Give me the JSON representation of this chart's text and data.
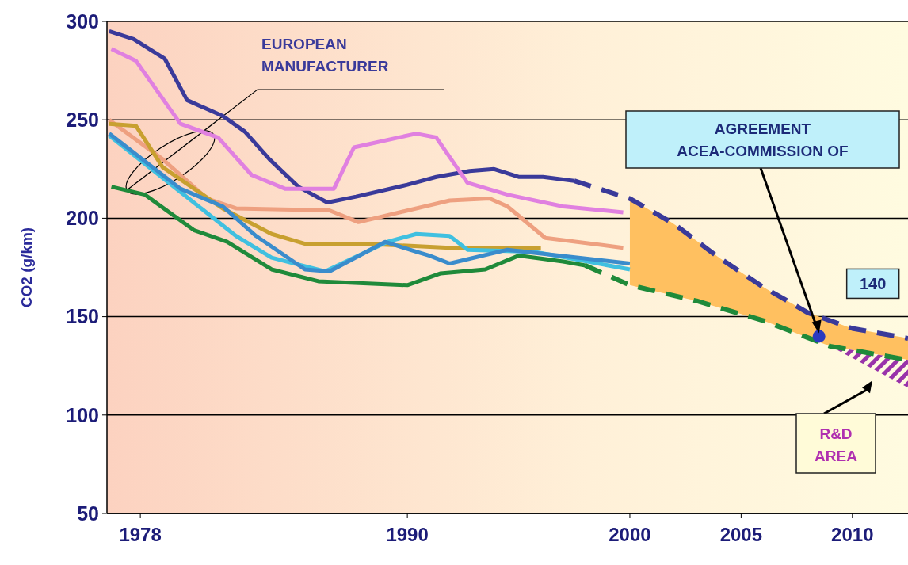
{
  "chart_data": {
    "type": "line",
    "ylabel": "CO2 (g/km)",
    "xlim": [
      1976.5,
      2012.5
    ],
    "xticks": [
      1978,
      1990,
      2000,
      2005,
      2010
    ],
    "ylim": [
      50,
      300
    ],
    "yticks": [
      50,
      100,
      150,
      200,
      250,
      300
    ],
    "grid": "y",
    "series": [
      {
        "color": "#3a3a9a",
        "x": [
          1976.6,
          1977.7,
          1979.1,
          1980.1,
          1981.7,
          1982.7,
          1983.8,
          1985.1,
          1986.4,
          1987.7,
          1990,
          1991.3,
          1992.8,
          1993.9,
          1995,
          1996.1,
          1997.5
        ],
        "values": [
          295,
          291,
          281,
          260,
          252,
          244,
          230,
          216,
          208,
          211,
          217,
          221,
          224,
          225,
          221,
          221,
          219
        ]
      },
      {
        "color": "#e080e0",
        "x": [
          1976.7,
          1977.8,
          1979.8,
          1981.5,
          1983,
          1984.5,
          1986.7,
          1987.6,
          1990.4,
          1991.3,
          1992.7,
          1994.5,
          1997,
          1999.7
        ],
        "values": [
          286,
          280,
          248,
          241,
          222,
          215,
          215,
          236,
          243,
          241,
          218,
          212,
          206,
          203
        ]
      },
      {
        "color": "#eea080",
        "x": [
          1976.6,
          1979,
          1981,
          1982.3,
          1986.5,
          1987.8,
          1991.9,
          1993.7,
          1994.5,
          1996.2,
          1999.7
        ],
        "values": [
          250,
          230,
          210,
          205,
          204,
          198,
          209,
          210,
          206,
          190,
          185
        ]
      },
      {
        "color": "#c8a030",
        "x": [
          1976.6,
          1977.8,
          1979,
          1981.7,
          1983.9,
          1985.4,
          1988.2,
          1991.9,
          1994.5,
          1996
        ],
        "values": [
          248,
          247,
          226,
          205,
          192,
          187,
          187,
          185,
          185,
          185
        ]
      },
      {
        "color": "#40c0e0",
        "x": [
          1976.6,
          1980.4,
          1982.3,
          1983.9,
          1986.3,
          1989.1,
          1990.4,
          1991.9,
          1992.7,
          1995.7,
          2000
        ],
        "values": [
          242,
          208,
          191,
          180,
          173,
          188,
          192,
          191,
          184,
          183,
          174
        ]
      },
      {
        "color": "#3a8ccc",
        "x": [
          1976.6,
          1979.8,
          1981.7,
          1983.2,
          1985.4,
          1986.5,
          1989,
          1990.4,
          1991,
          1991.9,
          1994.5,
          2000
        ],
        "values": [
          243,
          215,
          206,
          191,
          174,
          173,
          188,
          183,
          181,
          177,
          184,
          177
        ]
      },
      {
        "color": "#1f8a3a",
        "x": [
          1976.7,
          1978.2,
          1980.4,
          1981.9,
          1983.9,
          1986,
          1990,
          1991.5,
          1993.5,
          1995,
          1997,
          1998
        ],
        "values": [
          216,
          212,
          194,
          188,
          174,
          168,
          166,
          172,
          174,
          181,
          178,
          176
        ]
      },
      {
        "color": "#3a3a9a",
        "line_style": "dashed",
        "x": [
          1997.5,
          2000,
          2002,
          2004,
          2006,
          2008,
          2010,
          2012.5
        ],
        "values": [
          219,
          210,
          197,
          180,
          165,
          152,
          144,
          139
        ]
      },
      {
        "color": "#1f8a3a",
        "line_style": "dashed",
        "x": [
          1998,
          2000,
          2003,
          2006,
          2009,
          2012.5
        ],
        "values": [
          176,
          166,
          158,
          148,
          135,
          128
        ]
      },
      {
        "type": "scatter",
        "marker": "circle",
        "color": "#2a3ac0",
        "x": [
          2008.5
        ],
        "values": [
          140
        ]
      }
    ],
    "annotations": [
      "EUROPEAN\nMANUFACTURER",
      "AGREEMENT\nACEA-COMMISSION OF",
      "140",
      "R&D\nAREA"
    ]
  }
}
